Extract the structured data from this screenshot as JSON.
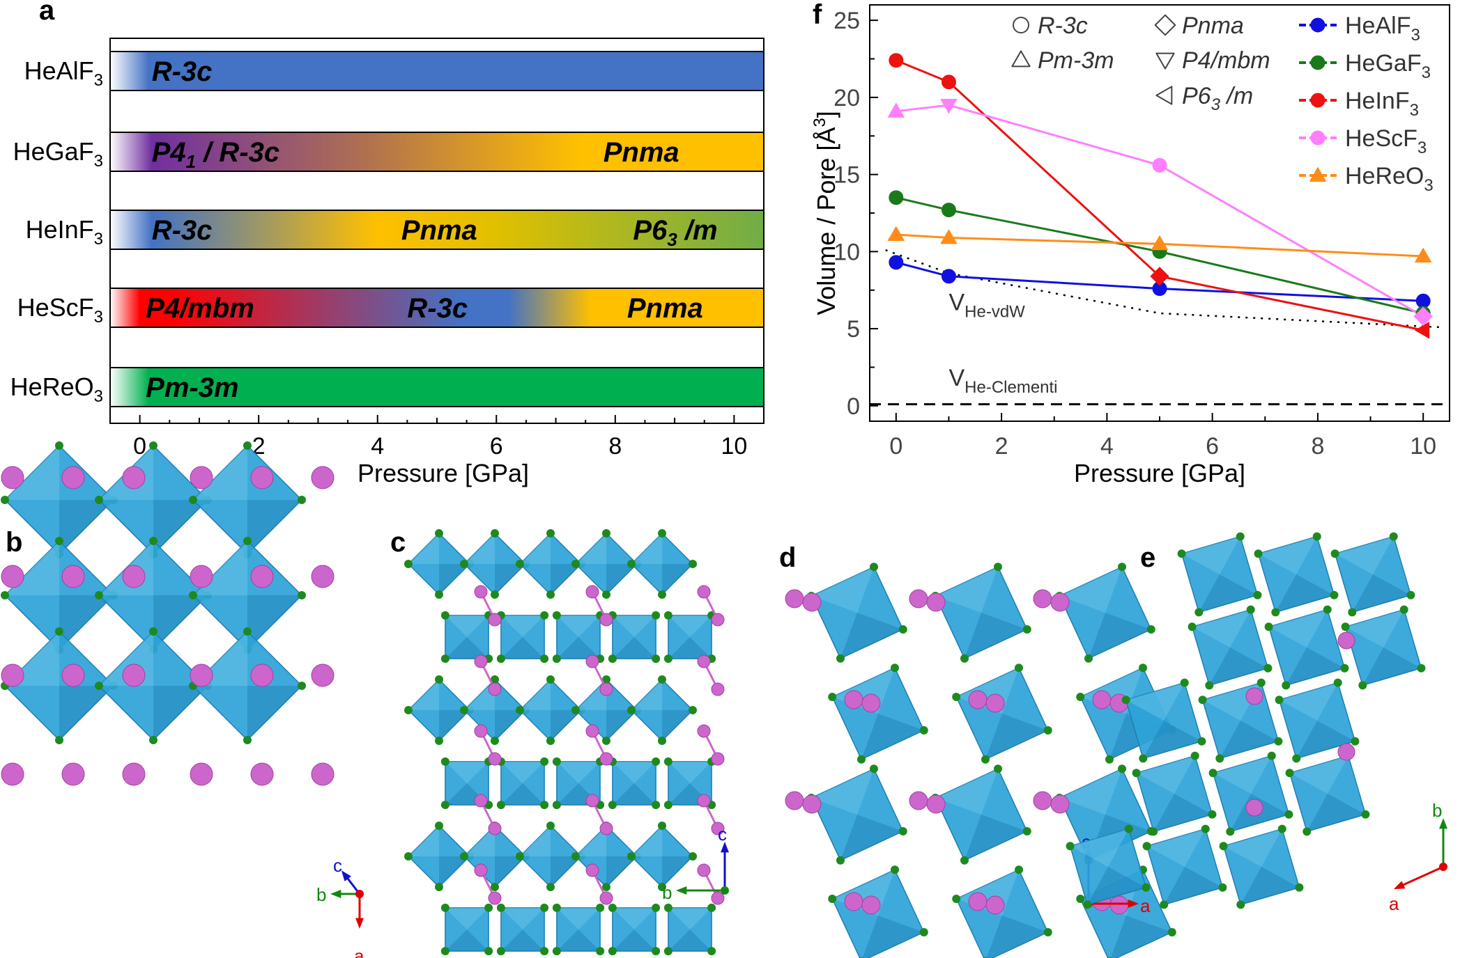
{
  "panel_labels": {
    "a": "a",
    "f": "f",
    "b": "b",
    "c": "c",
    "d": "d",
    "e": "e"
  },
  "chart_data": [
    {
      "type": "bar",
      "name": "phase-diagram",
      "panel": "a",
      "xlabel": "Pressure [GPa]",
      "xlim": [
        -0.5,
        10.5
      ],
      "xticks": [
        "0",
        "2",
        "4",
        "6",
        "8",
        "10"
      ],
      "rows": [
        {
          "label_main": "HeAlF",
          "label_sub": "3",
          "phases": [
            {
              "text": "R-3c",
              "at": 0.2
            }
          ],
          "colors": [
            [
              "#ffffff",
              -0.5
            ],
            [
              "#4472c4",
              0.15
            ],
            [
              "#4472c4",
              10.5
            ]
          ]
        },
        {
          "label_main": "HeGaF",
          "label_sub": "3",
          "phases": [
            {
              "text": "P4",
              "sub": "1",
              "rest": " / R-3c",
              "at": 0.2
            },
            {
              "text": "Pnma",
              "at": 7.8
            }
          ],
          "colors": [
            [
              "#ffffff",
              -0.5
            ],
            [
              "#7030a0",
              0.2
            ],
            [
              "#b07050",
              3.8
            ],
            [
              "#ffc000",
              7.4
            ],
            [
              "#ffc000",
              10.5
            ]
          ]
        },
        {
          "label_main": "HeInF",
          "label_sub": "3",
          "phases": [
            {
              "text": "R-3c",
              "at": 0.2
            },
            {
              "text": "Pnma",
              "at": 4.4
            },
            {
              "text": "P6",
              "sub": "3",
              "rest": " /m",
              "at": 8.3
            }
          ],
          "colors": [
            [
              "#ffffff",
              -0.5
            ],
            [
              "#4472c4",
              0.2
            ],
            [
              "#ffc000",
              4.0
            ],
            [
              "#e0c000",
              6.0
            ],
            [
              "#70ad47",
              10.5
            ]
          ]
        },
        {
          "label_main": "HeScF",
          "label_sub": "3",
          "phases": [
            {
              "text": "P4/mbm",
              "at": 0.1
            },
            {
              "text": "R-3c",
              "at": 4.5
            },
            {
              "text": "Pnma",
              "at": 8.2
            }
          ],
          "colors": [
            [
              "#ffffff",
              -0.5
            ],
            [
              "#ff0000",
              0.0
            ],
            [
              "#ff0000",
              0.5
            ],
            [
              "#4472c4",
              5.4
            ],
            [
              "#4472c4",
              6.2
            ],
            [
              "#ffc000",
              7.6
            ],
            [
              "#ffc000",
              10.5
            ]
          ]
        },
        {
          "label_main": "HeReO",
          "label_sub": "3",
          "phases": [
            {
              "text": "Pm-3m",
              "at": 0.1
            }
          ],
          "colors": [
            [
              "#ffffff",
              -0.5
            ],
            [
              "#00b050",
              0.15
            ],
            [
              "#00b050",
              10.5
            ]
          ]
        }
      ]
    },
    {
      "type": "line",
      "name": "volume-per-pore",
      "panel": "f",
      "xlabel": "Pressure [GPa]",
      "ylabel_pre": "Volume / Pore [Å",
      "ylabel_sup": "3",
      "ylabel_post": "]",
      "xlim": [
        -0.5,
        10.5
      ],
      "ylim": [
        -1,
        26
      ],
      "xticks": [
        0,
        2,
        4,
        6,
        8,
        10
      ],
      "yticks": [
        0,
        5,
        10,
        15,
        20,
        25
      ],
      "x": [
        0,
        1,
        5,
        10
      ],
      "series": [
        {
          "name_main": "HeAlF",
          "name_sub": "3",
          "color": "#1010e0",
          "y": [
            9.3,
            8.4,
            7.6,
            6.8
          ],
          "markers": [
            "circle",
            "circle",
            "circle",
            "circle"
          ]
        },
        {
          "name_main": "HeGaF",
          "name_sub": "3",
          "color": "#1a7a1a",
          "y": [
            13.5,
            12.7,
            10.0,
            6.0
          ],
          "markers": [
            "circle",
            "circle",
            "circle",
            "circle"
          ]
        },
        {
          "name_main": "HeInF",
          "name_sub": "3",
          "color": "#ee1111",
          "y": [
            22.4,
            21.0,
            8.4,
            4.9
          ],
          "markers": [
            "circle",
            "circle",
            "diamond",
            "triangle-left"
          ]
        },
        {
          "name_main": "HeScF",
          "name_sub": "3",
          "color": "#ff7fff",
          "y": [
            19.1,
            19.5,
            15.6,
            5.8
          ],
          "markers": [
            "triangle-up",
            "triangle-down",
            "circle",
            "diamond"
          ]
        },
        {
          "name_main": "HeReO",
          "name_sub": "3",
          "color": "#ff8c1a",
          "y": [
            11.1,
            10.9,
            10.5,
            9.7
          ],
          "markers": [
            "triangle-up",
            "triangle-up",
            "triangle-up",
            "triangle-up"
          ]
        }
      ],
      "reference_lines": [
        {
          "label_main": "V",
          "label_sub": "He-vdW",
          "style": "dotted",
          "x": [
            -0.2,
            1,
            5,
            10.3
          ],
          "y": [
            10.1,
            8.6,
            6.0,
            5.1
          ]
        },
        {
          "label_main": "V",
          "label_sub": "He-Clementi",
          "style": "dashed",
          "x": [
            -0.5,
            10.5
          ],
          "y": [
            0.1,
            0.1
          ]
        }
      ],
      "symbol_legend": [
        {
          "symbol": "circle",
          "text": "R-3c"
        },
        {
          "symbol": "triangle-up",
          "text": "Pm-3m"
        },
        {
          "symbol": "diamond",
          "text": "Pnma"
        },
        {
          "symbol": "triangle-down",
          "text": "P4/mbm"
        },
        {
          "symbol": "triangle-left",
          "text": "P6",
          "sub": "3",
          "rest": " /m"
        }
      ]
    }
  ],
  "structures": [
    {
      "panel": "b",
      "axes": [
        {
          "label": "c",
          "color": "#1010cc"
        },
        {
          "label": "b",
          "color": "#118811"
        },
        {
          "label": "a",
          "color": "#dd0000"
        }
      ]
    },
    {
      "panel": "c",
      "axes": [
        {
          "label": "c",
          "color": "#1010cc"
        },
        {
          "label": "b",
          "color": "#118811"
        }
      ]
    },
    {
      "panel": "d",
      "axes": [
        {
          "label": "c",
          "color": "#1010cc"
        },
        {
          "label": "a",
          "color": "#dd0000"
        }
      ]
    },
    {
      "panel": "e",
      "axes": [
        {
          "label": "b",
          "color": "#118811"
        },
        {
          "label": "a",
          "color": "#dd0000"
        }
      ]
    }
  ],
  "colors": {
    "octahedron": "#2ea3d8",
    "octahedron_dark": "#1d7fb3",
    "fluorine": "#1e8a1e",
    "helium": "#cc66cc"
  }
}
